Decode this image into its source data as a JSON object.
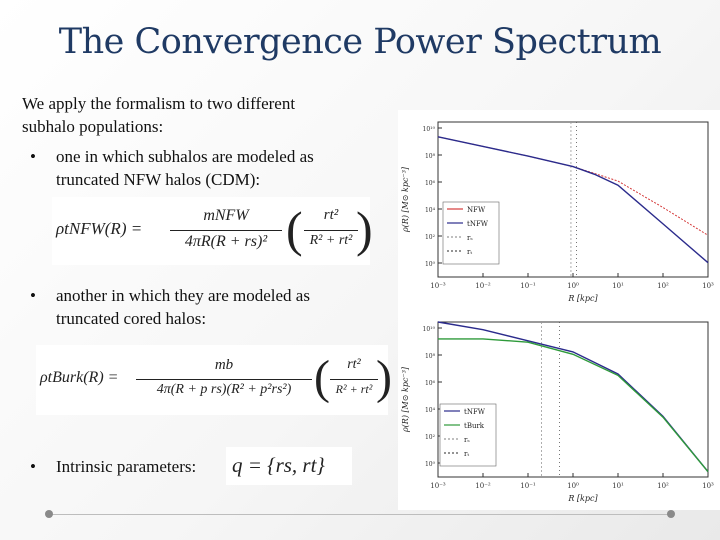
{
  "slide": {
    "title": "The Convergence Power Spectrum",
    "intro_line1": "We apply the formalism to two different",
    "intro_line2": "subhalo populations:",
    "bullets": [
      {
        "symbol": "•",
        "line1": "one in which subhalos are modeled as",
        "line2": "truncated NFW halos (CDM):"
      },
      {
        "symbol": "•",
        "line1": "another in which they are modeled as",
        "line2": "truncated cored halos:"
      },
      {
        "symbol": "•",
        "line1": "Intrinsic parameters:"
      }
    ],
    "formula_nfw": {
      "lhs": "ρtNFW(R) =",
      "num": "mNFW",
      "den": "4πR(R + rs)²",
      "paren_num": "rt²",
      "paren_den": "R² + rt²"
    },
    "formula_burk": {
      "lhs": "ρtBurk(R) =",
      "num": "mb",
      "den": "4π(R + p rs)(R² + p²rs²)",
      "paren_num": "rt²",
      "paren_den": "R² + rt²"
    },
    "params_formula": "q = {rs, rt}"
  },
  "chart_data": [
    {
      "type": "line",
      "ylabel": "ρ(R) [M⊙ kpc⁻³]",
      "xlabel": "R [kpc]",
      "x_scale": "log",
      "y_scale": "log",
      "xlim": [
        0.001,
        1000
      ],
      "ylim": [
        0.0001,
        1000000000000
      ],
      "x_ticks": [
        "10⁻³",
        "10⁻²",
        "10⁻¹",
        "10⁰",
        "10¹",
        "10²",
        "10³"
      ],
      "y_ticks": [
        "10¹⁰",
        "10⁸",
        "10⁶",
        "10⁴",
        "10²",
        "10⁰"
      ],
      "legend": [
        "NFW",
        "tNFW",
        "rₛ",
        "rₜ"
      ],
      "legend_position": "right",
      "colors": {
        "NFW": "#d43a3a",
        "tNFW": "#2b2b8c",
        "rs": "#999999",
        "rt": "#555555"
      },
      "series": [
        {
          "name": "NFW",
          "x": [
            0.001,
            0.01,
            0.1,
            1,
            3,
            10,
            100,
            1000
          ],
          "y": [
            30000000000,
            3000000000,
            300000000,
            25000000,
            5000000,
            800000,
            1500,
            2
          ]
        },
        {
          "name": "tNFW",
          "x": [
            0.001,
            0.01,
            0.1,
            1,
            3,
            10,
            100,
            1000
          ],
          "y": [
            30000000000,
            3000000000,
            300000000,
            25000000,
            4000000,
            300000,
            30,
            0.003
          ]
        }
      ],
      "vlines": [
        {
          "name": "rₛ",
          "x": 0.9
        },
        {
          "name": "rₜ",
          "x": 1.2
        }
      ]
    },
    {
      "type": "line",
      "ylabel": "ρ(R) [M⊙ kpc⁻³]",
      "xlabel": "R [kpc]",
      "x_scale": "log",
      "y_scale": "log",
      "xlim": [
        0.001,
        1000
      ],
      "ylim": [
        0.0001,
        10000000000
      ],
      "x_ticks": [
        "10⁻³",
        "10⁻²",
        "10⁻¹",
        "10⁰",
        "10¹",
        "10²",
        "10³"
      ],
      "y_ticks": [
        "10¹⁰",
        "10⁸",
        "10⁶",
        "10⁴",
        "10²",
        "10⁰"
      ],
      "legend": [
        "tNFW",
        "tBurk",
        "rₛ",
        "rₜ"
      ],
      "legend_position": "lower-left",
      "colors": {
        "tNFW": "#2b2b8c",
        "tBurk": "#2e9a3a",
        "rs": "#999999",
        "rt": "#555555"
      },
      "series": [
        {
          "name": "tNFW",
          "x": [
            0.001,
            0.01,
            0.1,
            1,
            10,
            100,
            1000
          ],
          "y": [
            20000000000,
            2000000000,
            200000000,
            20000000,
            200000,
            30,
            0.0003
          ]
        },
        {
          "name": "tBurk",
          "x": [
            0.001,
            0.01,
            0.1,
            1,
            10,
            100,
            1000
          ],
          "y": [
            300000000,
            300000000,
            150000000,
            12000000,
            150000,
            25,
            0.0003
          ]
        }
      ],
      "vlines": [
        {
          "name": "rₛ",
          "x": 0.2
        },
        {
          "name": "rₜ",
          "x": 0.5
        }
      ]
    }
  ]
}
